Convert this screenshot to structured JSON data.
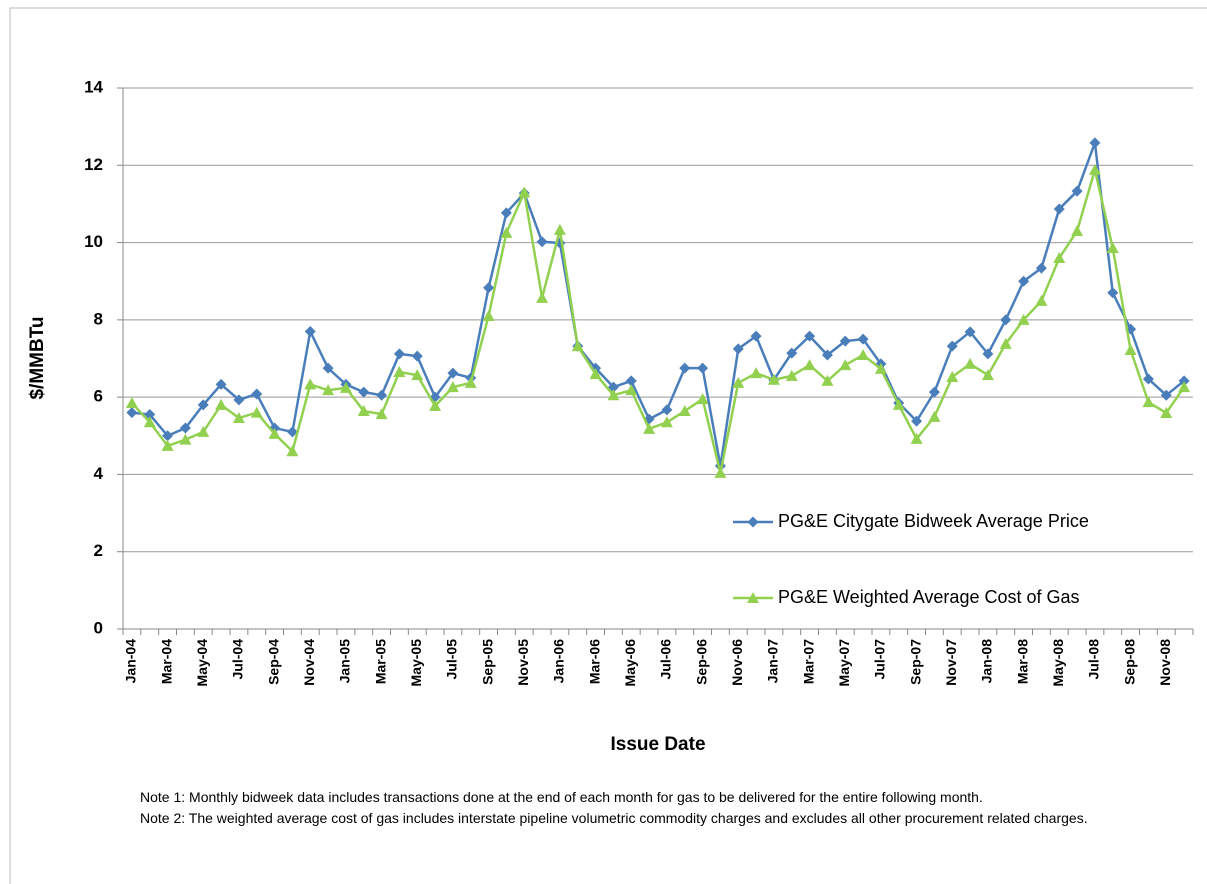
{
  "chart_data": {
    "type": "line",
    "ylabel": "$/MMBTu",
    "xlabel": "Issue Date",
    "categories": [
      "Jan-04",
      null,
      "Mar-04",
      null,
      "May-04",
      null,
      "Jul-04",
      null,
      "Sep-04",
      null,
      "Nov-04",
      null,
      "Jan-05",
      null,
      "Mar-05",
      null,
      "May-05",
      null,
      "Jul-05",
      null,
      "Sep-05",
      null,
      "Nov-05",
      null,
      "Jan-06",
      null,
      "Mar-06",
      null,
      "May-06",
      null,
      "Jul-06",
      null,
      "Sep-06",
      null,
      "Nov-06",
      null,
      "Jan-07",
      null,
      "Mar-07",
      null,
      "May-07",
      null,
      "Jul-07",
      null,
      "Sep-07",
      null,
      "Nov-07",
      null,
      "Jan-08",
      null,
      "Mar-08",
      null,
      "May-08",
      null,
      "Jul-08",
      null,
      "Sep-08",
      null,
      "Nov-08",
      null
    ],
    "series": [
      {
        "name": "PG&E Citygate Bidweek Average Price",
        "color": "#4a7ebb",
        "marker": "diamond",
        "values": [
          5.6,
          5.55,
          5.0,
          5.2,
          5.8,
          6.33,
          5.93,
          6.08,
          5.2,
          5.1,
          7.7,
          6.75,
          6.33,
          6.13,
          6.05,
          7.12,
          7.06,
          6.0,
          6.62,
          6.5,
          8.83,
          10.77,
          11.28,
          10.02,
          9.99,
          7.32,
          6.75,
          6.26,
          6.42,
          5.43,
          5.67,
          6.75,
          6.75,
          4.22,
          7.25,
          7.58,
          6.45,
          7.14,
          7.58,
          7.09,
          7.45,
          7.5,
          6.86,
          5.85,
          5.38,
          6.13,
          7.32,
          7.69,
          7.12,
          8.0,
          9.0,
          9.34,
          10.87,
          11.33,
          12.58,
          8.7,
          7.76,
          6.47,
          6.05,
          6.42
        ]
      },
      {
        "name": "PG&E Weighted Average Cost of Gas",
        "color": "#92d050",
        "marker": "triangle",
        "values": [
          5.85,
          5.35,
          4.74,
          4.9,
          5.1,
          5.8,
          5.46,
          5.6,
          5.05,
          4.6,
          6.33,
          6.18,
          6.24,
          5.64,
          5.56,
          6.65,
          6.57,
          5.77,
          6.26,
          6.37,
          8.1,
          10.25,
          11.3,
          8.57,
          10.33,
          7.32,
          6.6,
          6.05,
          6.18,
          5.18,
          5.35,
          5.64,
          5.95,
          4.04,
          6.37,
          6.62,
          6.45,
          6.55,
          6.83,
          6.42,
          6.83,
          7.09,
          6.73,
          5.8,
          4.92,
          5.49,
          6.52,
          6.86,
          6.57,
          7.38,
          8.0,
          8.49,
          9.6,
          10.3,
          11.88,
          9.86,
          7.22,
          5.87,
          5.59,
          6.26
        ]
      }
    ],
    "ylim": [
      0,
      14
    ],
    "yticks": [
      0,
      2,
      4,
      6,
      8,
      10,
      12,
      14
    ],
    "grid": true,
    "legend": "lower right",
    "notes": [
      "Note 1: Monthly bidweek data includes transactions done at the end of each month for gas to be delivered for the entire following month.",
      "Note 2: The weighted average cost of gas includes interstate pipeline volumetric commodity charges and excludes all other procurement related charges."
    ]
  }
}
